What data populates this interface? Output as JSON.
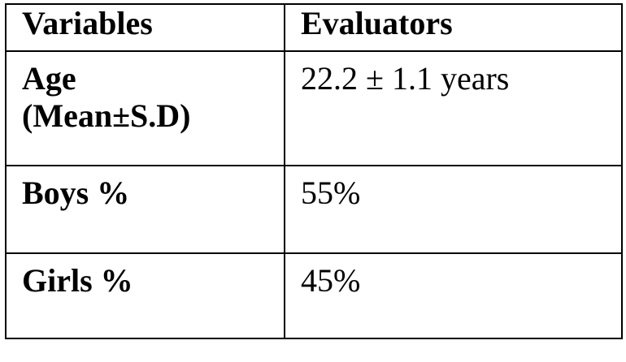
{
  "table": {
    "header": [
      "Variables",
      "Evaluators"
    ],
    "rows": [
      [
        "Age (Mean±S.D)",
        "22.2 ± 1.1 years"
      ],
      [
        "Boys %",
        "55%"
      ],
      [
        "Girls %",
        "45%"
      ]
    ]
  }
}
